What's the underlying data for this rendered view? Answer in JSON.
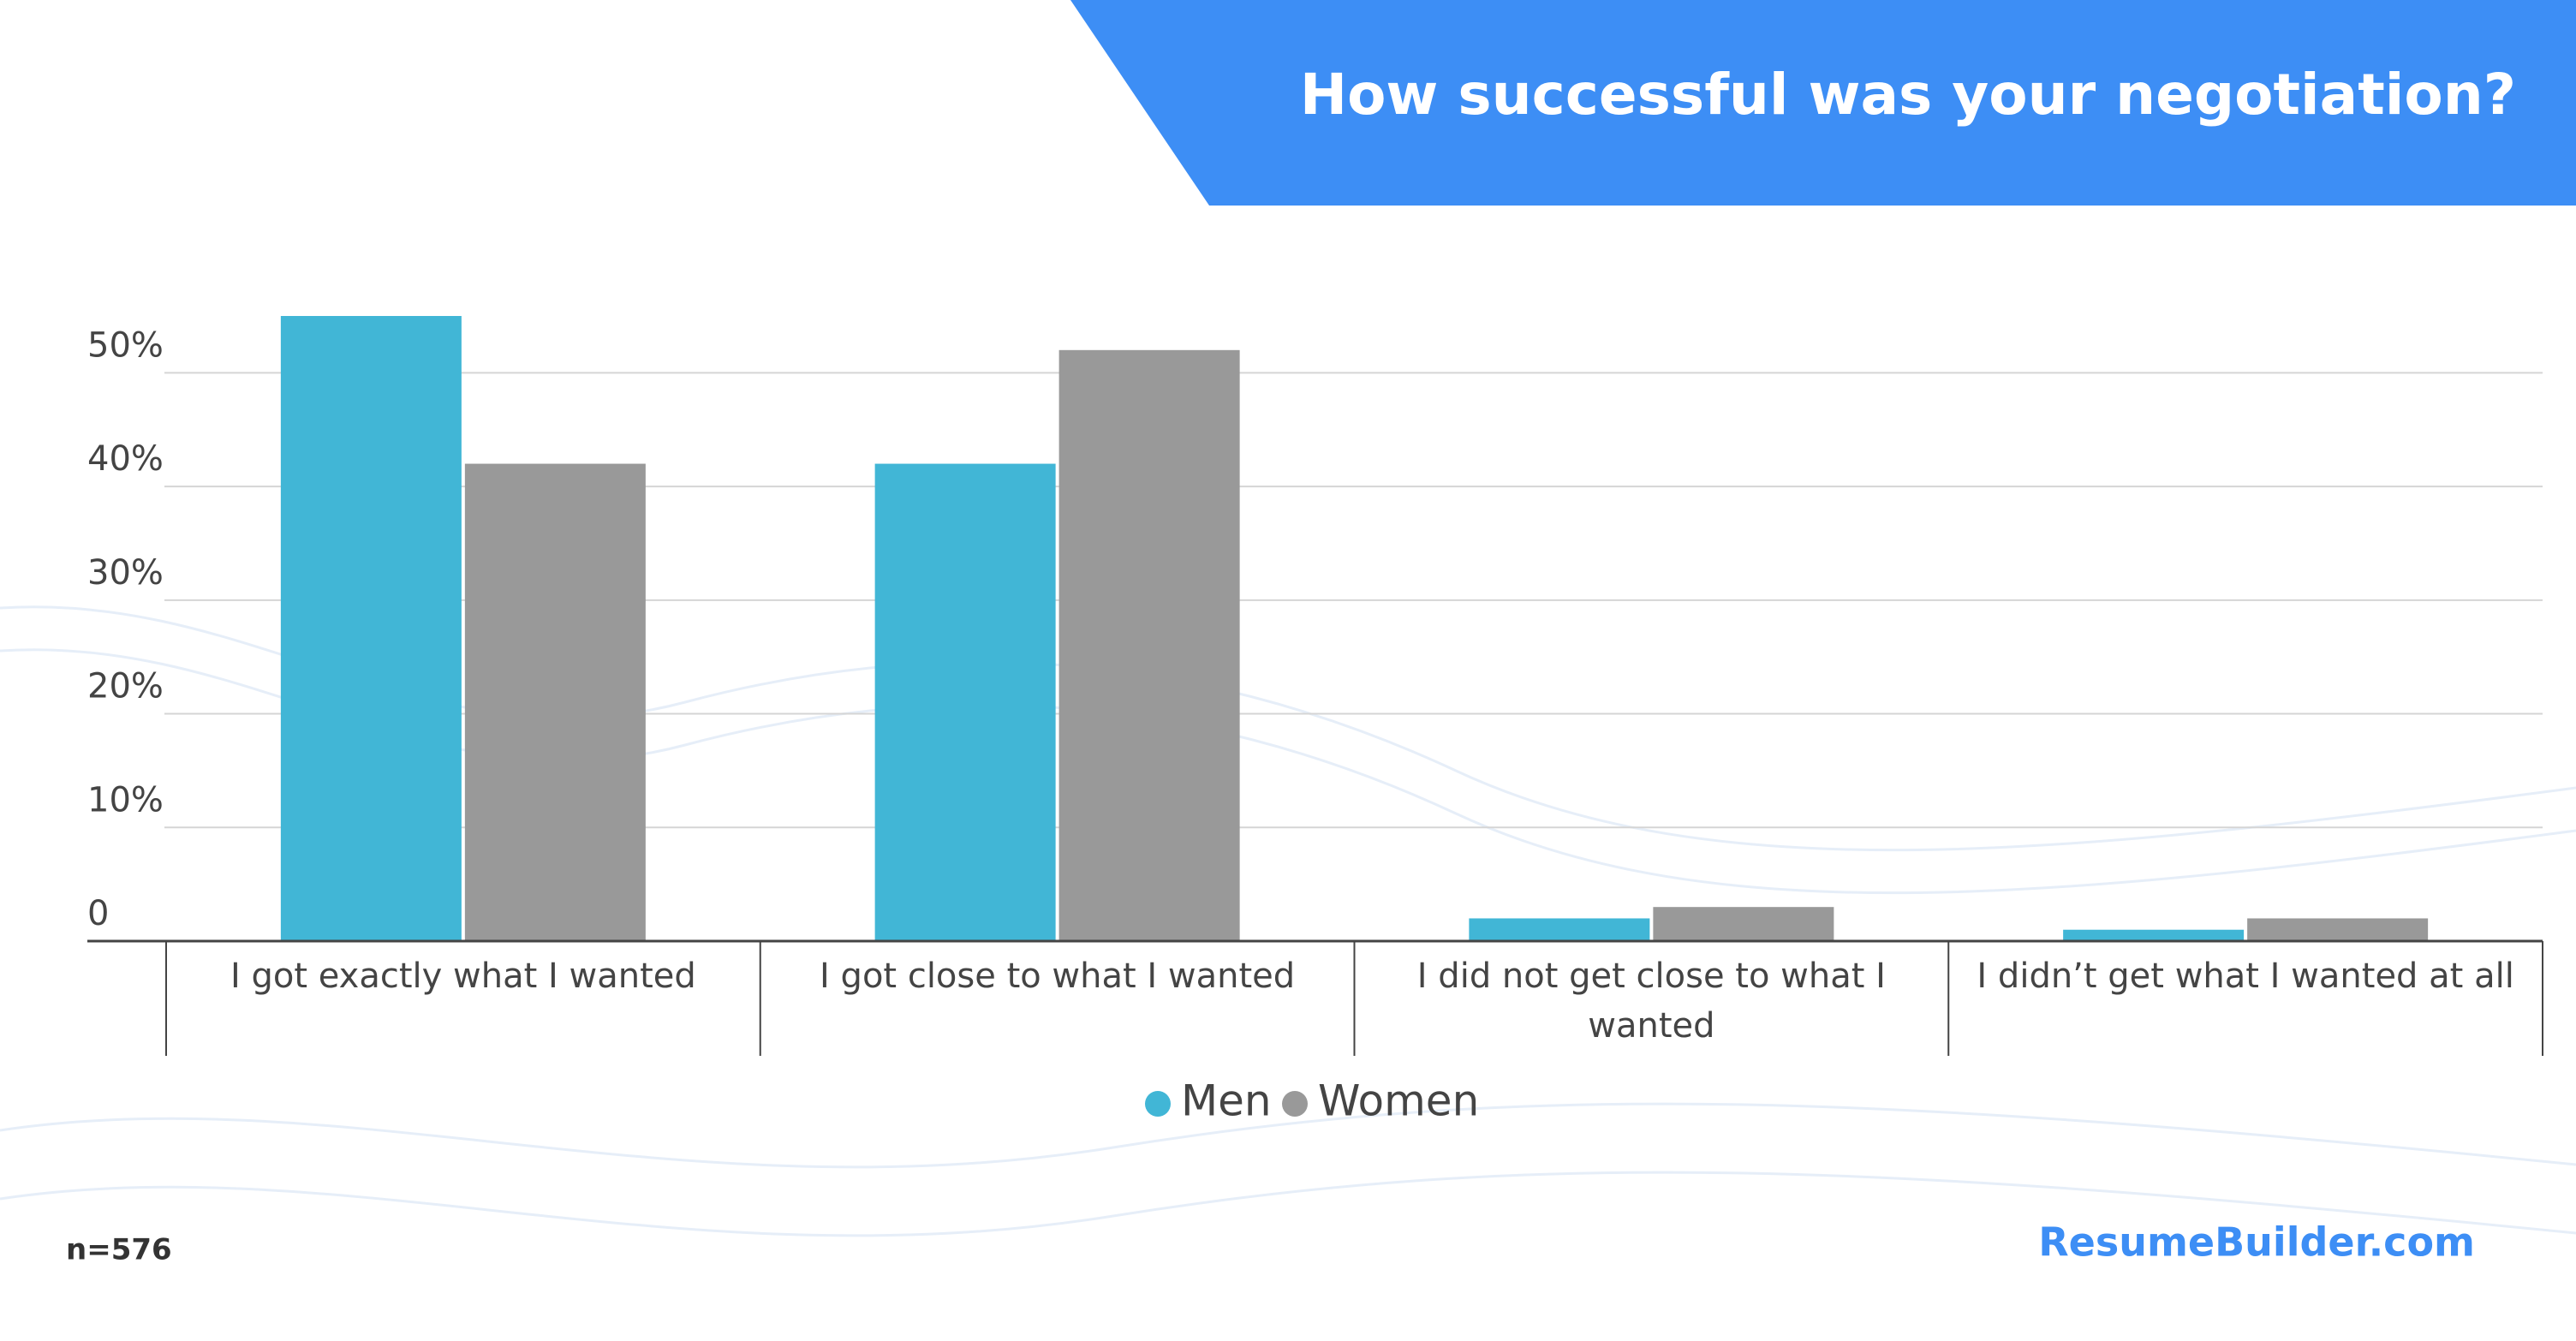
{
  "chart_data": {
    "type": "bar",
    "title": "How successful was your negotiation?",
    "categories": [
      "I got exactly what I wanted",
      "I got close to what I wanted",
      "I did not get close to what I wanted",
      "I didn’t get what I wanted at all"
    ],
    "series": [
      {
        "name": "Men",
        "color": "#41b6d6",
        "values": [
          55,
          42,
          2,
          1
        ]
      },
      {
        "name": "Women",
        "color": "#999999",
        "values": [
          42,
          52,
          3,
          2
        ]
      }
    ],
    "ylim": [
      0,
      55
    ],
    "yticks": [
      0,
      {
        "value": 10,
        "label": "10%"
      },
      {
        "value": 20,
        "label": "20%"
      },
      {
        "value": 30,
        "label": "30%"
      },
      {
        "value": 40,
        "label": "40%"
      },
      {
        "value": 50,
        "label": "50%"
      }
    ],
    "grid": true,
    "legend": "bottom",
    "note": "n=576",
    "source": "ResumeBuilder.com"
  }
}
